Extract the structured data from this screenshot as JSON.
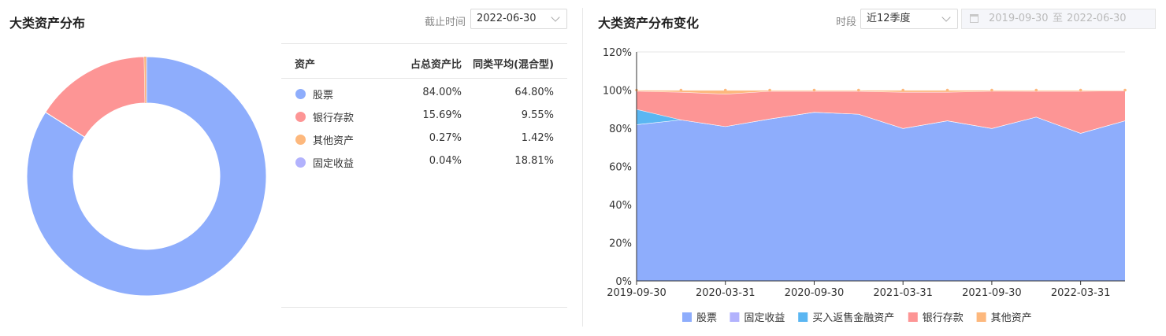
{
  "left": {
    "title": "大类资产分布",
    "date_label": "截止时间",
    "date_value": "2022-06-30",
    "table_headers": [
      "资产",
      "占总资产比",
      "同类平均(混合型)"
    ],
    "rows": [
      {
        "name": "股票",
        "pct": "84.00%",
        "avg": "64.80%",
        "color": "#8eadfc"
      },
      {
        "name": "银行存款",
        "pct": "15.69%",
        "avg": "9.55%",
        "color": "#fd9595"
      },
      {
        "name": "其他资产",
        "pct": "0.27%",
        "avg": "1.42%",
        "color": "#fdb87d"
      },
      {
        "name": "固定收益",
        "pct": "0.04%",
        "avg": "18.81%",
        "color": "#b2b2fd"
      }
    ]
  },
  "right": {
    "title": "大类资产分布变化",
    "period_label": "时段",
    "period_value": "近12季度",
    "date_start": "2019-09-30",
    "date_sep": "至",
    "date_end": "2022-06-30"
  },
  "chart_data": [
    {
      "type": "pie",
      "donut": true,
      "categories": [
        "股票",
        "银行存款",
        "其他资产",
        "固定收益"
      ],
      "values": [
        84.0,
        15.69,
        0.27,
        0.04
      ],
      "colors": [
        "#8eadfc",
        "#fd9595",
        "#fdb87d",
        "#b2b2fd"
      ]
    },
    {
      "type": "area",
      "stacked": true,
      "x": [
        "2019-09-30",
        "2019-12-31",
        "2020-03-31",
        "2020-06-30",
        "2020-09-30",
        "2020-12-31",
        "2021-03-31",
        "2021-06-30",
        "2021-09-30",
        "2021-12-31",
        "2022-03-31",
        "2022-06-30"
      ],
      "x_tick_labels": [
        "2019-09-30",
        "2020-03-31",
        "2020-09-30",
        "2021-03-31",
        "2021-09-30",
        "2022-03-31"
      ],
      "ylim": [
        0,
        120
      ],
      "y_ticks": [
        "0%",
        "20%",
        "40%",
        "60%",
        "80%",
        "100%",
        "120%"
      ],
      "legend_position": "bottom",
      "series": [
        {
          "name": "股票",
          "color": "#8eadfc",
          "values": [
            82,
            84.5,
            81,
            85,
            88.5,
            87.5,
            80,
            84,
            80,
            86,
            77.5,
            84
          ]
        },
        {
          "name": "固定收益",
          "color": "#b2b2fd",
          "values": [
            0,
            0,
            0,
            0,
            0,
            0,
            0,
            0,
            0,
            0,
            0,
            0.04
          ]
        },
        {
          "name": "买入返售金融资产",
          "color": "#5ab6f2",
          "values": [
            8,
            0,
            0,
            0,
            0,
            0,
            0,
            0,
            0,
            0,
            0,
            0
          ]
        },
        {
          "name": "银行存款",
          "color": "#fd9595",
          "values": [
            9.5,
            14.5,
            17,
            14.5,
            11,
            12,
            19,
            15,
            19.5,
            13.5,
            22,
            15.69
          ]
        },
        {
          "name": "其他资产",
          "color": "#fdb87d",
          "values": [
            0.5,
            1,
            2,
            0.5,
            0.5,
            0.5,
            1,
            1,
            0.5,
            0.5,
            0.5,
            0.27
          ]
        }
      ]
    }
  ]
}
